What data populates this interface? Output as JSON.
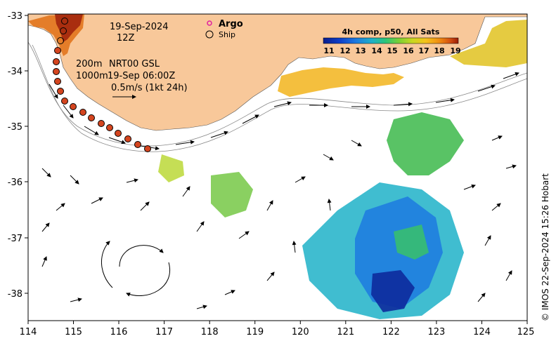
{
  "map": {
    "title_date": "19-Sep-2024",
    "title_time": "12Z",
    "x_ticks": [
      "114",
      "115",
      "116",
      "117",
      "118",
      "119",
      "120",
      "121",
      "122",
      "123",
      "124",
      "125"
    ],
    "y_ticks": [
      "-33",
      "-34",
      "-35",
      "-36",
      "-37",
      "-38"
    ],
    "depth_contour_1": "200m",
    "depth_contour_2": "1000m",
    "altimetry_label": "NRT00 GSL",
    "altimetry_time": "19-Sep 06:00Z",
    "scale_label": "0.5m/s (1kt 24h)",
    "legend_argo": "Argo",
    "legend_ship": "Ship",
    "credit": "© IMOS 22-Sep-2024 15:26 Hobart",
    "colorbar": {
      "title": "4h comp, p50, All Sats",
      "labels": [
        "11",
        "12",
        "13",
        "14",
        "15",
        "16",
        "17",
        "18",
        "19"
      ],
      "colors": [
        "#0a1e8c",
        "#0d3ec8",
        "#1d7ae0",
        "#1fb1c8",
        "#2cc57a",
        "#7ad036",
        "#c9d820",
        "#f5c21b",
        "#f08c10",
        "#d24e10",
        "#9a1d08"
      ]
    },
    "colors": {
      "land": "#f8c89a",
      "ocean": "#ffffff",
      "argo": "#e020a0",
      "ship_fill": "#d4451f"
    }
  }
}
